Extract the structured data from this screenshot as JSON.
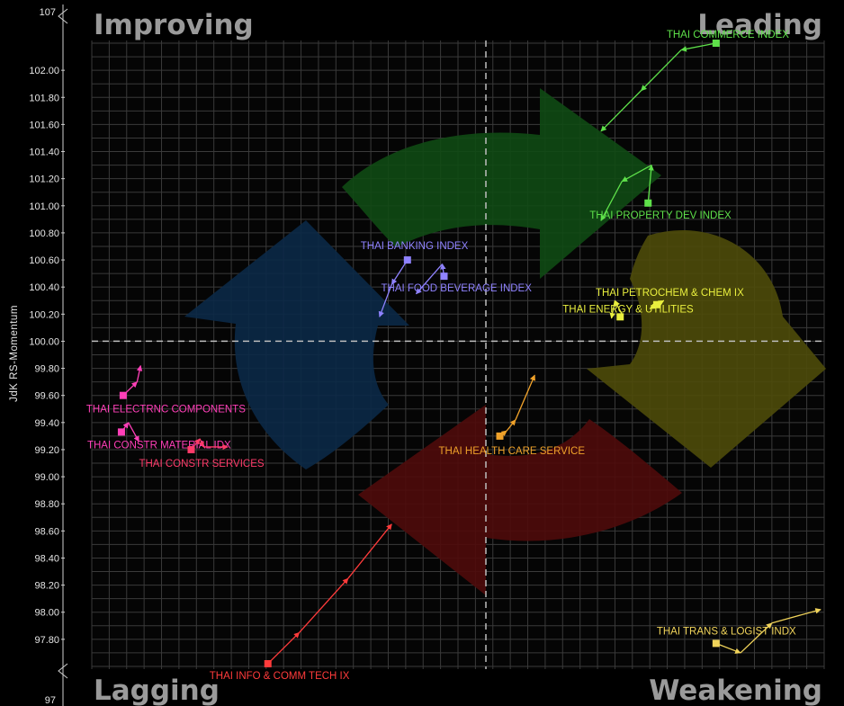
{
  "chart_data": {
    "type": "line",
    "ylabel": "JdK RS-Momentum",
    "ylim": [
      97.58,
      102.22
    ],
    "y_axis_break_labels": [
      "107",
      "97"
    ],
    "y_ticks": [
      "97.80",
      "98.00",
      "98.20",
      "98.40",
      "98.60",
      "98.80",
      "99.00",
      "99.20",
      "99.40",
      "99.60",
      "99.80",
      "100.00",
      "100.20",
      "100.40",
      "100.60",
      "100.80",
      "101.00",
      "101.20",
      "101.40",
      "101.60",
      "101.80",
      "102.00"
    ],
    "x_range": [
      -1,
      20
    ],
    "center": {
      "x": 10.3,
      "y": 100.0
    },
    "grid": true,
    "quadrants": {
      "top_left": "Improving",
      "top_right": "Leading",
      "bottom_left": "Lagging",
      "bottom_right": "Weakening"
    },
    "series": [
      {
        "name": "THAI COMMERCE INDEX",
        "color": "#5ee04a",
        "points": [
          [
            13.6,
            101.55
          ],
          [
            14.75,
            101.85
          ],
          [
            15.9,
            102.15
          ],
          [
            16.9,
            102.2
          ]
        ]
      },
      {
        "name": "THAI PROPERTY DEV INDEX",
        "color": "#5ee04a",
        "points": [
          [
            13.6,
            100.89
          ],
          [
            14.2,
            101.18
          ],
          [
            15.05,
            101.3
          ],
          [
            14.95,
            101.02
          ]
        ]
      },
      {
        "name": "THAI PETROCHEM & CHEM IX",
        "color": "#e9ef3e",
        "points": [
          [
            15.0,
            100.24
          ],
          [
            15.4,
            100.3
          ],
          [
            15.2,
            100.27
          ]
        ]
      },
      {
        "name": "THAI ENERGY & UTILITIES",
        "color": "#e9ef3e",
        "points": [
          [
            13.9,
            100.17
          ],
          [
            14.0,
            100.3
          ],
          [
            14.2,
            100.2
          ],
          [
            14.15,
            100.18
          ]
        ]
      },
      {
        "name": "THAI BANKING INDEX",
        "color": "#8f82ff",
        "points": [
          [
            7.25,
            100.18
          ],
          [
            7.6,
            100.42
          ],
          [
            8.05,
            100.6
          ]
        ]
      },
      {
        "name": "THAI FOOD BEVERAGE INDEX",
        "color": "#8f82ff",
        "points": [
          [
            8.3,
            100.35
          ],
          [
            9.05,
            100.57
          ],
          [
            9.1,
            100.48
          ]
        ]
      },
      {
        "name": "THAI HEALTH CARE SERVICE",
        "color": "#f0a22a",
        "points": [
          [
            11.7,
            99.75
          ],
          [
            11.15,
            99.42
          ],
          [
            10.9,
            99.34
          ],
          [
            10.7,
            99.3
          ]
        ]
      },
      {
        "name": "THAI TRANS & LOGIST INDX",
        "color": "#f0d35a",
        "points": [
          [
            19.9,
            98.02
          ],
          [
            18.5,
            97.92
          ],
          [
            17.6,
            97.7
          ],
          [
            16.9,
            97.77
          ]
        ]
      },
      {
        "name": "THAI ELECTRNC COMPONENTS",
        "color": "#ff3fb8",
        "points": [
          [
            0.4,
            99.82
          ],
          [
            0.3,
            99.7
          ],
          [
            -0.1,
            99.6
          ]
        ]
      },
      {
        "name": "THAI CONSTR MATERIAL IDX",
        "color": "#ff3fb8",
        "points": [
          [
            0.35,
            99.26
          ],
          [
            0.05,
            99.4
          ],
          [
            -0.15,
            99.33
          ]
        ]
      },
      {
        "name": "THAI CONSTR SERVICES",
        "color": "#ff3b6a",
        "points": [
          [
            2.9,
            99.22
          ],
          [
            2.2,
            99.22
          ],
          [
            2.1,
            99.28
          ],
          [
            1.85,
            99.2
          ]
        ]
      },
      {
        "name": "THAI INFO & COMM TECH IX",
        "color": "#ff3b3b",
        "points": [
          [
            7.6,
            98.65
          ],
          [
            6.35,
            98.25
          ],
          [
            4.95,
            97.85
          ],
          [
            4.05,
            97.62
          ]
        ]
      }
    ]
  }
}
